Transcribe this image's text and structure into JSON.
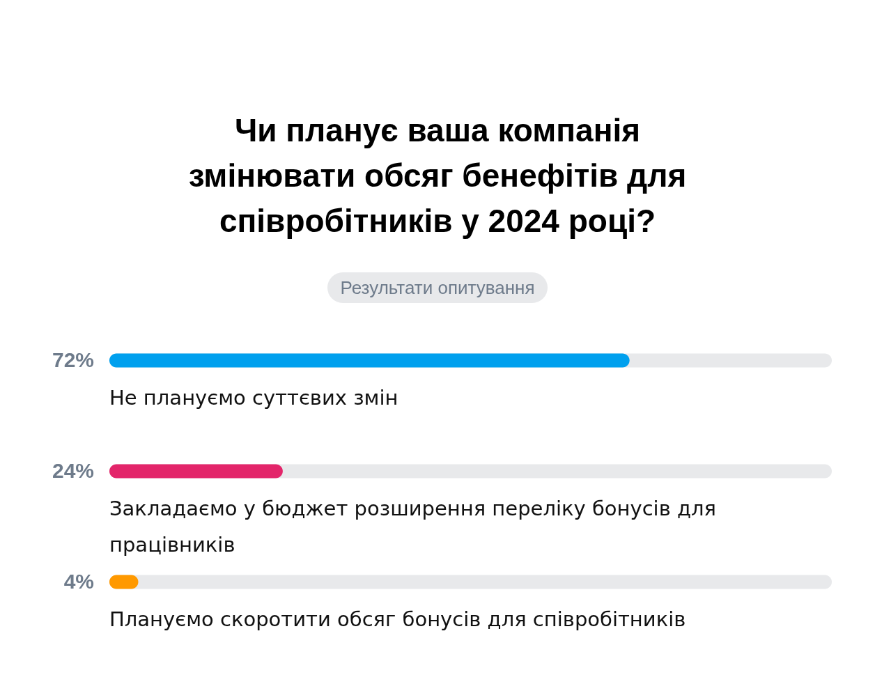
{
  "chart_data": {
    "type": "bar",
    "orientation": "horizontal",
    "title": "Чи планує ваша компанія змінювати обсяг бенефітів для співробітників у 2024 році?",
    "subtitle": "Результати опитування",
    "categories": [
      "Не плануємо суттєвих змін",
      "Закладаємо у бюджет розширення переліку бонусів для працівників",
      "Плануємо скоротити обсяг бонусів для співробітників"
    ],
    "values": [
      72,
      24,
      4
    ],
    "colors": [
      "#00a0ee",
      "#e3256a",
      "#ff9900"
    ],
    "value_labels": [
      "72%",
      "24%",
      "4%"
    ],
    "xlim": [
      0,
      100
    ]
  }
}
